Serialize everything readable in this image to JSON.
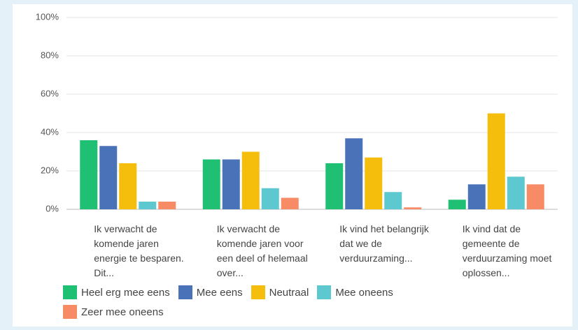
{
  "chart_data": {
    "type": "bar",
    "categories": [
      "Ik verwacht de komende jaren energie te besparen. Dit...",
      "Ik verwacht de komende jaren voor een deel of helemaal over...",
      "Ik vind het belangrijk dat we de verduurzaming...",
      "Ik vind dat de gemeente de verduurzaming moet oplossen..."
    ],
    "series": [
      {
        "name": "Heel erg mee eens",
        "color": "#20c074",
        "values": [
          36,
          26,
          24,
          5
        ]
      },
      {
        "name": "Mee eens",
        "color": "#4a72b8",
        "values": [
          33,
          26,
          37,
          13
        ]
      },
      {
        "name": "Neutraal",
        "color": "#f6be0c",
        "values": [
          24,
          30,
          27,
          50
        ]
      },
      {
        "name": "Mee oneens",
        "color": "#5ec8d0",
        "values": [
          4,
          11,
          9,
          17
        ]
      },
      {
        "name": "Zeer mee oneens",
        "color": "#f78b66",
        "values": [
          4,
          6,
          1,
          13
        ]
      }
    ],
    "ylim": [
      0,
      100
    ],
    "yticks": [
      {
        "value": 0,
        "label": "0%"
      },
      {
        "value": 20,
        "label": "20%"
      },
      {
        "value": 40,
        "label": "40%"
      },
      {
        "value": 60,
        "label": "60%"
      },
      {
        "value": 80,
        "label": "80%"
      },
      {
        "value": 100,
        "label": "100%"
      }
    ],
    "grid": true
  }
}
